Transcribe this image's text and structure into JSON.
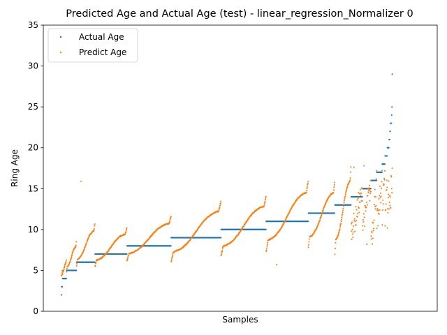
{
  "chart_data": {
    "type": "scatter",
    "title": "Predicted Age and Actual Age (test) - linear_regression_Normalizer 0",
    "xlabel": "Samples",
    "ylabel": "Ring Age",
    "ylim": [
      0,
      35
    ],
    "yticks": [
      "0",
      "5",
      "10",
      "15",
      "20",
      "25",
      "30",
      "35"
    ],
    "grid": false,
    "legend_position": "top-left",
    "x_range": [
      0,
      1254
    ],
    "series": [
      {
        "name": "Actual Age",
        "color": "#1f77b4"
      },
      {
        "name": "Predict Age",
        "color": "#ff7f0e"
      }
    ],
    "groups": [
      {
        "actual": 2,
        "count": 1,
        "pred_min": 4.4,
        "pred_max": 4.4,
        "outliers": []
      },
      {
        "actual": 3,
        "count": 3,
        "pred_min": 4.4,
        "pred_max": 5.0,
        "outliers": []
      },
      {
        "actual": 4,
        "count": 14,
        "pred_min": 4.5,
        "pred_max": 6.3,
        "outliers": []
      },
      {
        "actual": 5,
        "count": 35,
        "pred_min": 4.8,
        "pred_max": 8.5,
        "outliers": []
      },
      {
        "actual": 6,
        "count": 65,
        "pred_min": 5.5,
        "pred_max": 10.7,
        "outliers": [
          15.9
        ]
      },
      {
        "actual": 7,
        "count": 112,
        "pred_min": 5.5,
        "pred_max": 10.2,
        "outliers": []
      },
      {
        "actual": 8,
        "count": 155,
        "pred_min": 6.2,
        "pred_max": 11.6,
        "outliers": []
      },
      {
        "actual": 9,
        "count": 175,
        "pred_min": 6.1,
        "pred_max": 13.4,
        "outliers": []
      },
      {
        "actual": 10,
        "count": 158,
        "pred_min": 6.8,
        "pred_max": 14.0,
        "outliers": []
      },
      {
        "actual": 11,
        "count": 148,
        "pred_min": 7.3,
        "pred_max": 15.9,
        "outliers": [
          5.7
        ]
      },
      {
        "actual": 12,
        "count": 93,
        "pred_min": 7.8,
        "pred_max": 15.8,
        "outliers": []
      },
      {
        "actual": 13,
        "count": 57,
        "pred_min": 7.0,
        "pred_max": 17.7,
        "outliers": []
      },
      {
        "actual": 14,
        "count": 40,
        "pred_min": 9.3,
        "pred_max": 14.9,
        "outliers": [
          17.6
        ]
      },
      {
        "actual": 15,
        "count": 30,
        "pred_min": 10.4,
        "pred_max": 15.5,
        "outliers": [
          17.8,
          8.2
        ]
      },
      {
        "actual": 16,
        "count": 20,
        "pred_min": 8.3,
        "pred_max": 15.9,
        "outliers": []
      },
      {
        "actual": 17,
        "count": 19,
        "pred_min": 10.0,
        "pred_max": 16.1,
        "outliers": []
      },
      {
        "actual": 18,
        "count": 10,
        "pred_min": 11.0,
        "pred_max": 17.8,
        "outliers": []
      },
      {
        "actual": 19,
        "count": 8,
        "pred_min": 11.5,
        "pred_max": 16.0,
        "outliers": []
      },
      {
        "actual": 20,
        "count": 6,
        "pred_min": 10.8,
        "pred_max": 15.5,
        "outliers": []
      },
      {
        "actual": 21,
        "count": 3,
        "pred_min": 12.5,
        "pred_max": 14.5,
        "outliers": []
      },
      {
        "actual": 22,
        "count": 2,
        "pred_min": 13.0,
        "pred_max": 14.0,
        "outliers": []
      },
      {
        "actual": 23,
        "count": 4,
        "pred_min": 12.0,
        "pred_max": 17.4,
        "outliers": []
      },
      {
        "actual": 24,
        "count": 1,
        "pred_min": 15.0,
        "pred_max": 15.0,
        "outliers": []
      },
      {
        "actual": 25,
        "count": 1,
        "pred_min": 14.5,
        "pred_max": 14.5,
        "outliers": []
      },
      {
        "actual": 29,
        "count": 1,
        "pred_min": 17.5,
        "pred_max": 17.5,
        "outliers": []
      }
    ]
  }
}
